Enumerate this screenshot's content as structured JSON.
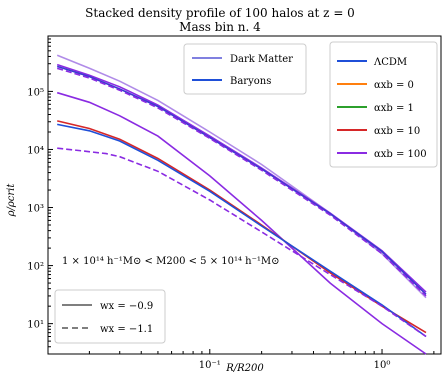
{
  "chart_data": {
    "type": "line",
    "title": "Stacked density profile of 100 halos at z = 0",
    "subtitle": "Mass bin n. 4",
    "xlabel": "R/R200",
    "ylabel": "ρ/ρcrit",
    "xscale": "log",
    "yscale": "log",
    "xlim": [
      0.0115,
      2.2
    ],
    "ylim": [
      3,
      900000
    ],
    "x_ticks": [
      {
        "value": 0.1,
        "label": "10⁻¹"
      },
      {
        "value": 1,
        "label": "10⁰"
      }
    ],
    "y_ticks": [
      {
        "value": 10,
        "label": "10¹"
      },
      {
        "value": 100,
        "label": "10²"
      },
      {
        "value": 1000,
        "label": "10³"
      },
      {
        "value": 10000,
        "label": "10⁴"
      },
      {
        "value": 100000,
        "label": "10⁵"
      }
    ],
    "annotation": "1 × 10¹⁴ h⁻¹M⊙ < M200 < 5 × 10¹⁴ h⁻¹M⊙",
    "legend_components": {
      "placement": "top-center",
      "entries": [
        {
          "label": "Dark Matter",
          "color": "#8080e0",
          "style": "solid"
        },
        {
          "label": "Baryons",
          "color": "#1f4fd8",
          "style": "solid"
        }
      ]
    },
    "legend_models": {
      "placement": "top-right",
      "entries": [
        {
          "label": "ΛCDM",
          "color": "#1f4fd8"
        },
        {
          "label": "αxb = 0",
          "color": "#ff7f0e"
        },
        {
          "label": "αxb = 1",
          "color": "#2ca02c"
        },
        {
          "label": "αxb = 10",
          "color": "#d62728"
        },
        {
          "label": "αxb = 100",
          "color": "#8a2be2"
        }
      ]
    },
    "legend_wx": {
      "placement": "bottom-left",
      "entries": [
        {
          "label": "wx = −0.9",
          "style": "solid"
        },
        {
          "label": "wx = −1.1",
          "style": "dashed"
        }
      ]
    },
    "series": [
      {
        "color": "#b08be8",
        "style": "solid",
        "x": [
          0.013,
          0.02,
          0.03,
          0.05,
          0.1,
          0.2,
          0.5,
          1,
          1.8
        ],
        "y": [
          420000,
          250000,
          150000,
          70000,
          20000,
          5500,
          800,
          160,
          28
        ]
      },
      {
        "color": "#8a2be2",
        "style": "solid",
        "x": [
          0.013,
          0.02,
          0.03,
          0.05,
          0.1,
          0.2,
          0.5,
          1,
          1.8
        ],
        "y": [
          290000,
          190000,
          120000,
          58000,
          17000,
          4800,
          800,
          180,
          35
        ]
      },
      {
        "color": "#3a3ad0",
        "style": "solid",
        "x": [
          0.013,
          0.02,
          0.03,
          0.05,
          0.1,
          0.2,
          0.5,
          1,
          1.8
        ],
        "y": [
          270000,
          180000,
          110000,
          55000,
          16000,
          4600,
          780,
          175,
          32
        ]
      },
      {
        "color": "#8a2be2",
        "style": "dashed",
        "x": [
          0.013,
          0.02,
          0.03,
          0.05,
          0.1,
          0.2,
          0.5,
          1,
          1.8
        ],
        "y": [
          250000,
          170000,
          105000,
          52000,
          15500,
          4400,
          740,
          160,
          30
        ]
      },
      {
        "color": "#8a2be2",
        "style": "solid",
        "x": [
          0.013,
          0.02,
          0.03,
          0.05,
          0.1,
          0.2,
          0.3,
          0.5,
          1,
          1.8
        ],
        "y": [
          95000,
          65000,
          38000,
          17000,
          3500,
          600,
          200,
          50,
          10,
          3
        ]
      },
      {
        "color": "#d62728",
        "style": "solid",
        "x": [
          0.013,
          0.02,
          0.03,
          0.05,
          0.1,
          0.2,
          0.5,
          1,
          1.8
        ],
        "y": [
          31000,
          23000,
          15000,
          7000,
          2000,
          500,
          75,
          20,
          7
        ]
      },
      {
        "color": "#1f4fd8",
        "style": "solid",
        "x": [
          0.013,
          0.02,
          0.03,
          0.05,
          0.1,
          0.2,
          0.5,
          1,
          1.8
        ],
        "y": [
          27000,
          21000,
          14000,
          6500,
          1900,
          480,
          80,
          21,
          6
        ]
      },
      {
        "color": "#8a2be2",
        "style": "dashed",
        "x": [
          0.013,
          0.018,
          0.025,
          0.03,
          0.05,
          0.1,
          0.2,
          0.5,
          1,
          1.8
        ],
        "y": [
          10500,
          9500,
          8500,
          7500,
          4200,
          1350,
          380,
          70,
          20,
          6
        ]
      }
    ]
  }
}
